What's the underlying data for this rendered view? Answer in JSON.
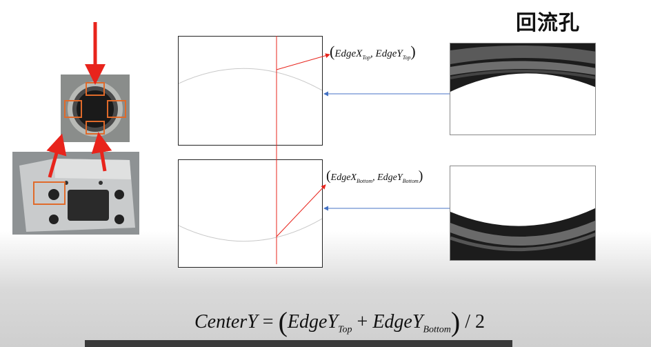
{
  "title": "回流孔",
  "labels": {
    "top_point": {
      "open": "(",
      "x": "EdgeX",
      "x_sub": "Top",
      "sep": ", ",
      "y": "EdgeY",
      "y_sub": "Top",
      "close": ")"
    },
    "bottom_point": {
      "open": "(",
      "x": "EdgeX",
      "x_sub": "Bottom",
      "sep": ", ",
      "y": "EdgeY",
      "y_sub": "Bottom",
      "close": ")"
    }
  },
  "formula": {
    "lhs": "CenterY",
    "eq": " = ",
    "open": "(",
    "a": "EdgeY",
    "a_sub": "Top",
    "plus": " + ",
    "b": "EdgeY",
    "b_sub": "Bottom",
    "close": ")",
    "div": " / 2"
  },
  "colors": {
    "arrow_red": "#e8241c",
    "arrow_blue": "#4472c4",
    "box_orange": "#e06a2a"
  }
}
